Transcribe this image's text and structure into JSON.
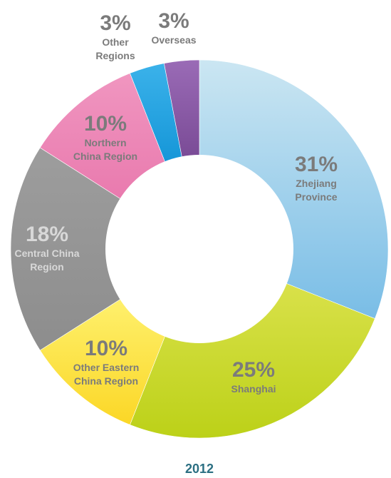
{
  "chart_data": {
    "type": "pie",
    "year_label": "2012",
    "start_angle_deg": 0,
    "direction": "clockwise",
    "slices": [
      {
        "key": "zhejiang",
        "label_lines": [
          "Zhejiang",
          "Province"
        ],
        "value": 31,
        "value_label": "31%",
        "color": "#9fd0ea",
        "gradient_top": "#cbe6f2",
        "gradient_bottom": "#79bde6",
        "label_color": "#7b7b7b"
      },
      {
        "key": "shanghai",
        "label_lines": [
          "Shanghai"
        ],
        "value": 25,
        "value_label": "25%",
        "color": "#cbd82a",
        "gradient_top": "#d9e14a",
        "gradient_bottom": "#bcd118",
        "label_color": "#7b7b7b"
      },
      {
        "key": "other-eastern",
        "label_lines": [
          "Other Eastern",
          "China Region"
        ],
        "value": 10,
        "value_label": "10%",
        "color": "#fde23a",
        "gradient_top": "#fef06d",
        "gradient_bottom": "#fbd726",
        "label_color": "#7b7b7b"
      },
      {
        "key": "central",
        "label_lines": [
          "Central China",
          "Region"
        ],
        "value": 18,
        "value_label": "18%",
        "color": "#969696",
        "gradient_top": "#9d9d9d",
        "gradient_bottom": "#8d8d8d",
        "label_color": "#d8d8d8"
      },
      {
        "key": "northern",
        "label_lines": [
          "Northern",
          "China Region"
        ],
        "value": 10,
        "value_label": "10%",
        "color": "#ee86b6",
        "gradient_top": "#f096c0",
        "gradient_bottom": "#e97aae",
        "label_color": "#7b7b7b"
      },
      {
        "key": "other-regions",
        "label_lines": [
          "Other",
          "Regions"
        ],
        "value": 3,
        "value_label": "3%",
        "color": "#27a6e3",
        "gradient_top": "#3bb2ea",
        "gradient_bottom": "#1596d8",
        "label_color": "#7b7b7b"
      },
      {
        "key": "overseas",
        "label_lines": [
          "Overseas"
        ],
        "value": 3,
        "value_label": "3%",
        "color": "#8a5aa6",
        "gradient_top": "#9a6bb6",
        "gradient_bottom": "#7a4b96",
        "label_color": "#7b7b7b"
      }
    ],
    "colors": {
      "year_label": "#2b6f82",
      "slice_label_default": "#7b7b7b"
    }
  }
}
